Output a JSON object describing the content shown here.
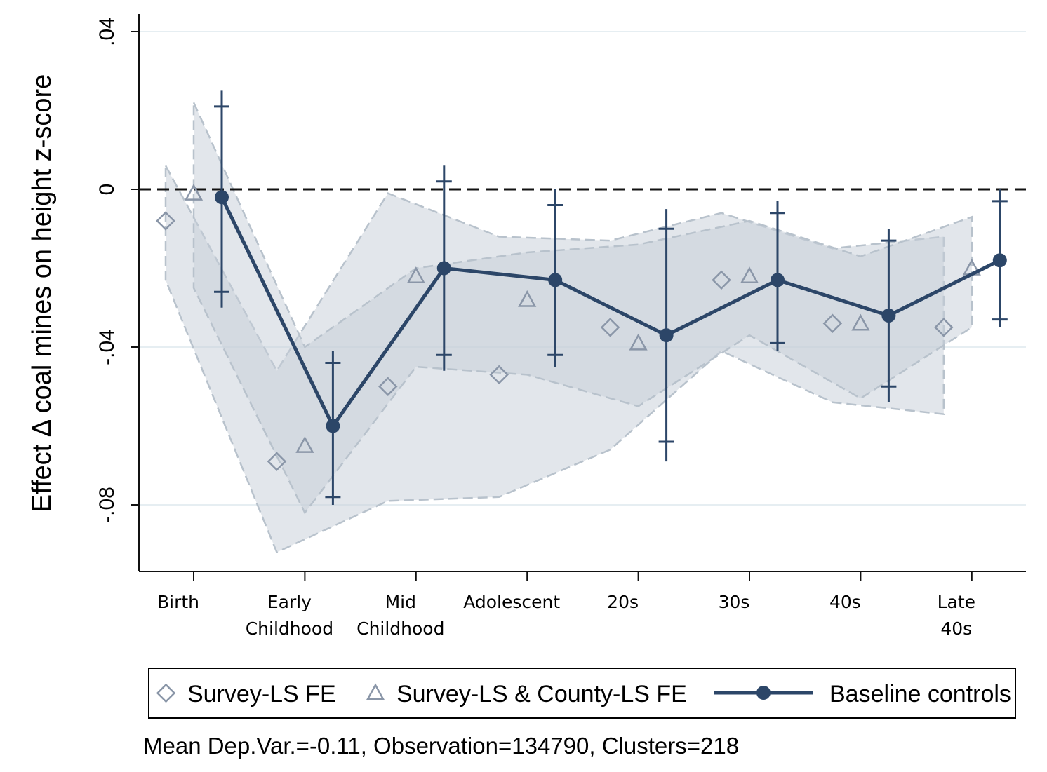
{
  "chart_data": {
    "type": "line",
    "ylabel": "Effect Δ coal mines  on height z-score",
    "ylim": [
      -0.097,
      0.045
    ],
    "yticks": [
      0.04,
      0,
      -0.04,
      -0.08
    ],
    "yticklabels": [
      ".04",
      "0",
      "-.04",
      "-.08"
    ],
    "reference_line": 0,
    "grid": true,
    "categories": [
      {
        "lines": [
          "Birth"
        ]
      },
      {
        "lines": [
          "Early",
          "Childhood"
        ]
      },
      {
        "lines": [
          "Mid",
          "Childhood"
        ]
      },
      {
        "lines": [
          "Adolescent"
        ]
      },
      {
        "lines": [
          "20s"
        ]
      },
      {
        "lines": [
          "30s"
        ]
      },
      {
        "lines": [
          "40s"
        ]
      },
      {
        "lines": [
          "Late",
          "40s"
        ]
      }
    ],
    "legend_position": "bottom",
    "series": [
      {
        "name": "Survey-LS FE",
        "marker": "diamond",
        "color": "#8a96a8",
        "values": [
          -0.008,
          -0.069,
          -0.05,
          -0.047,
          -0.035,
          -0.023,
          -0.034,
          -0.035
        ],
        "ci_upper": [
          0.006,
          -0.046,
          -0.001,
          -0.012,
          -0.013,
          -0.006,
          -0.015,
          -0.012
        ],
        "ci_lower": [
          -0.023,
          -0.092,
          -0.079,
          -0.078,
          -0.066,
          -0.041,
          -0.054,
          -0.057
        ]
      },
      {
        "name": "Survey-LS & County-LS FE",
        "marker": "triangle",
        "color": "#8a96a8",
        "values": [
          -0.001,
          -0.065,
          -0.022,
          -0.028,
          -0.039,
          -0.022,
          -0.034,
          -0.02
        ],
        "ci_upper": [
          0.022,
          -0.04,
          -0.02,
          -0.016,
          -0.014,
          -0.008,
          -0.017,
          -0.007
        ],
        "ci_lower": [
          -0.025,
          -0.082,
          -0.045,
          -0.047,
          -0.055,
          -0.037,
          -0.053,
          -0.035
        ]
      },
      {
        "name": "Baseline controls",
        "marker": "circle",
        "color": "#2c4668",
        "values": [
          -0.002,
          -0.06,
          -0.02,
          -0.023,
          -0.037,
          -0.023,
          -0.032,
          -0.018
        ],
        "ci90_upper": [
          0.021,
          -0.044,
          0.002,
          -0.004,
          -0.01,
          -0.006,
          -0.013,
          -0.003
        ],
        "ci90_lower": [
          -0.026,
          -0.078,
          -0.042,
          -0.042,
          -0.064,
          -0.039,
          -0.05,
          -0.033
        ],
        "ci95_upper": [
          0.025,
          -0.041,
          0.006,
          0.0,
          -0.005,
          -0.003,
          -0.01,
          0.0
        ],
        "ci95_lower": [
          -0.03,
          -0.08,
          -0.046,
          -0.045,
          -0.069,
          -0.041,
          -0.054,
          -0.035
        ]
      }
    ],
    "note": "Mean Dep.Var.=-0.11, Observation=134790, Clusters=218"
  }
}
